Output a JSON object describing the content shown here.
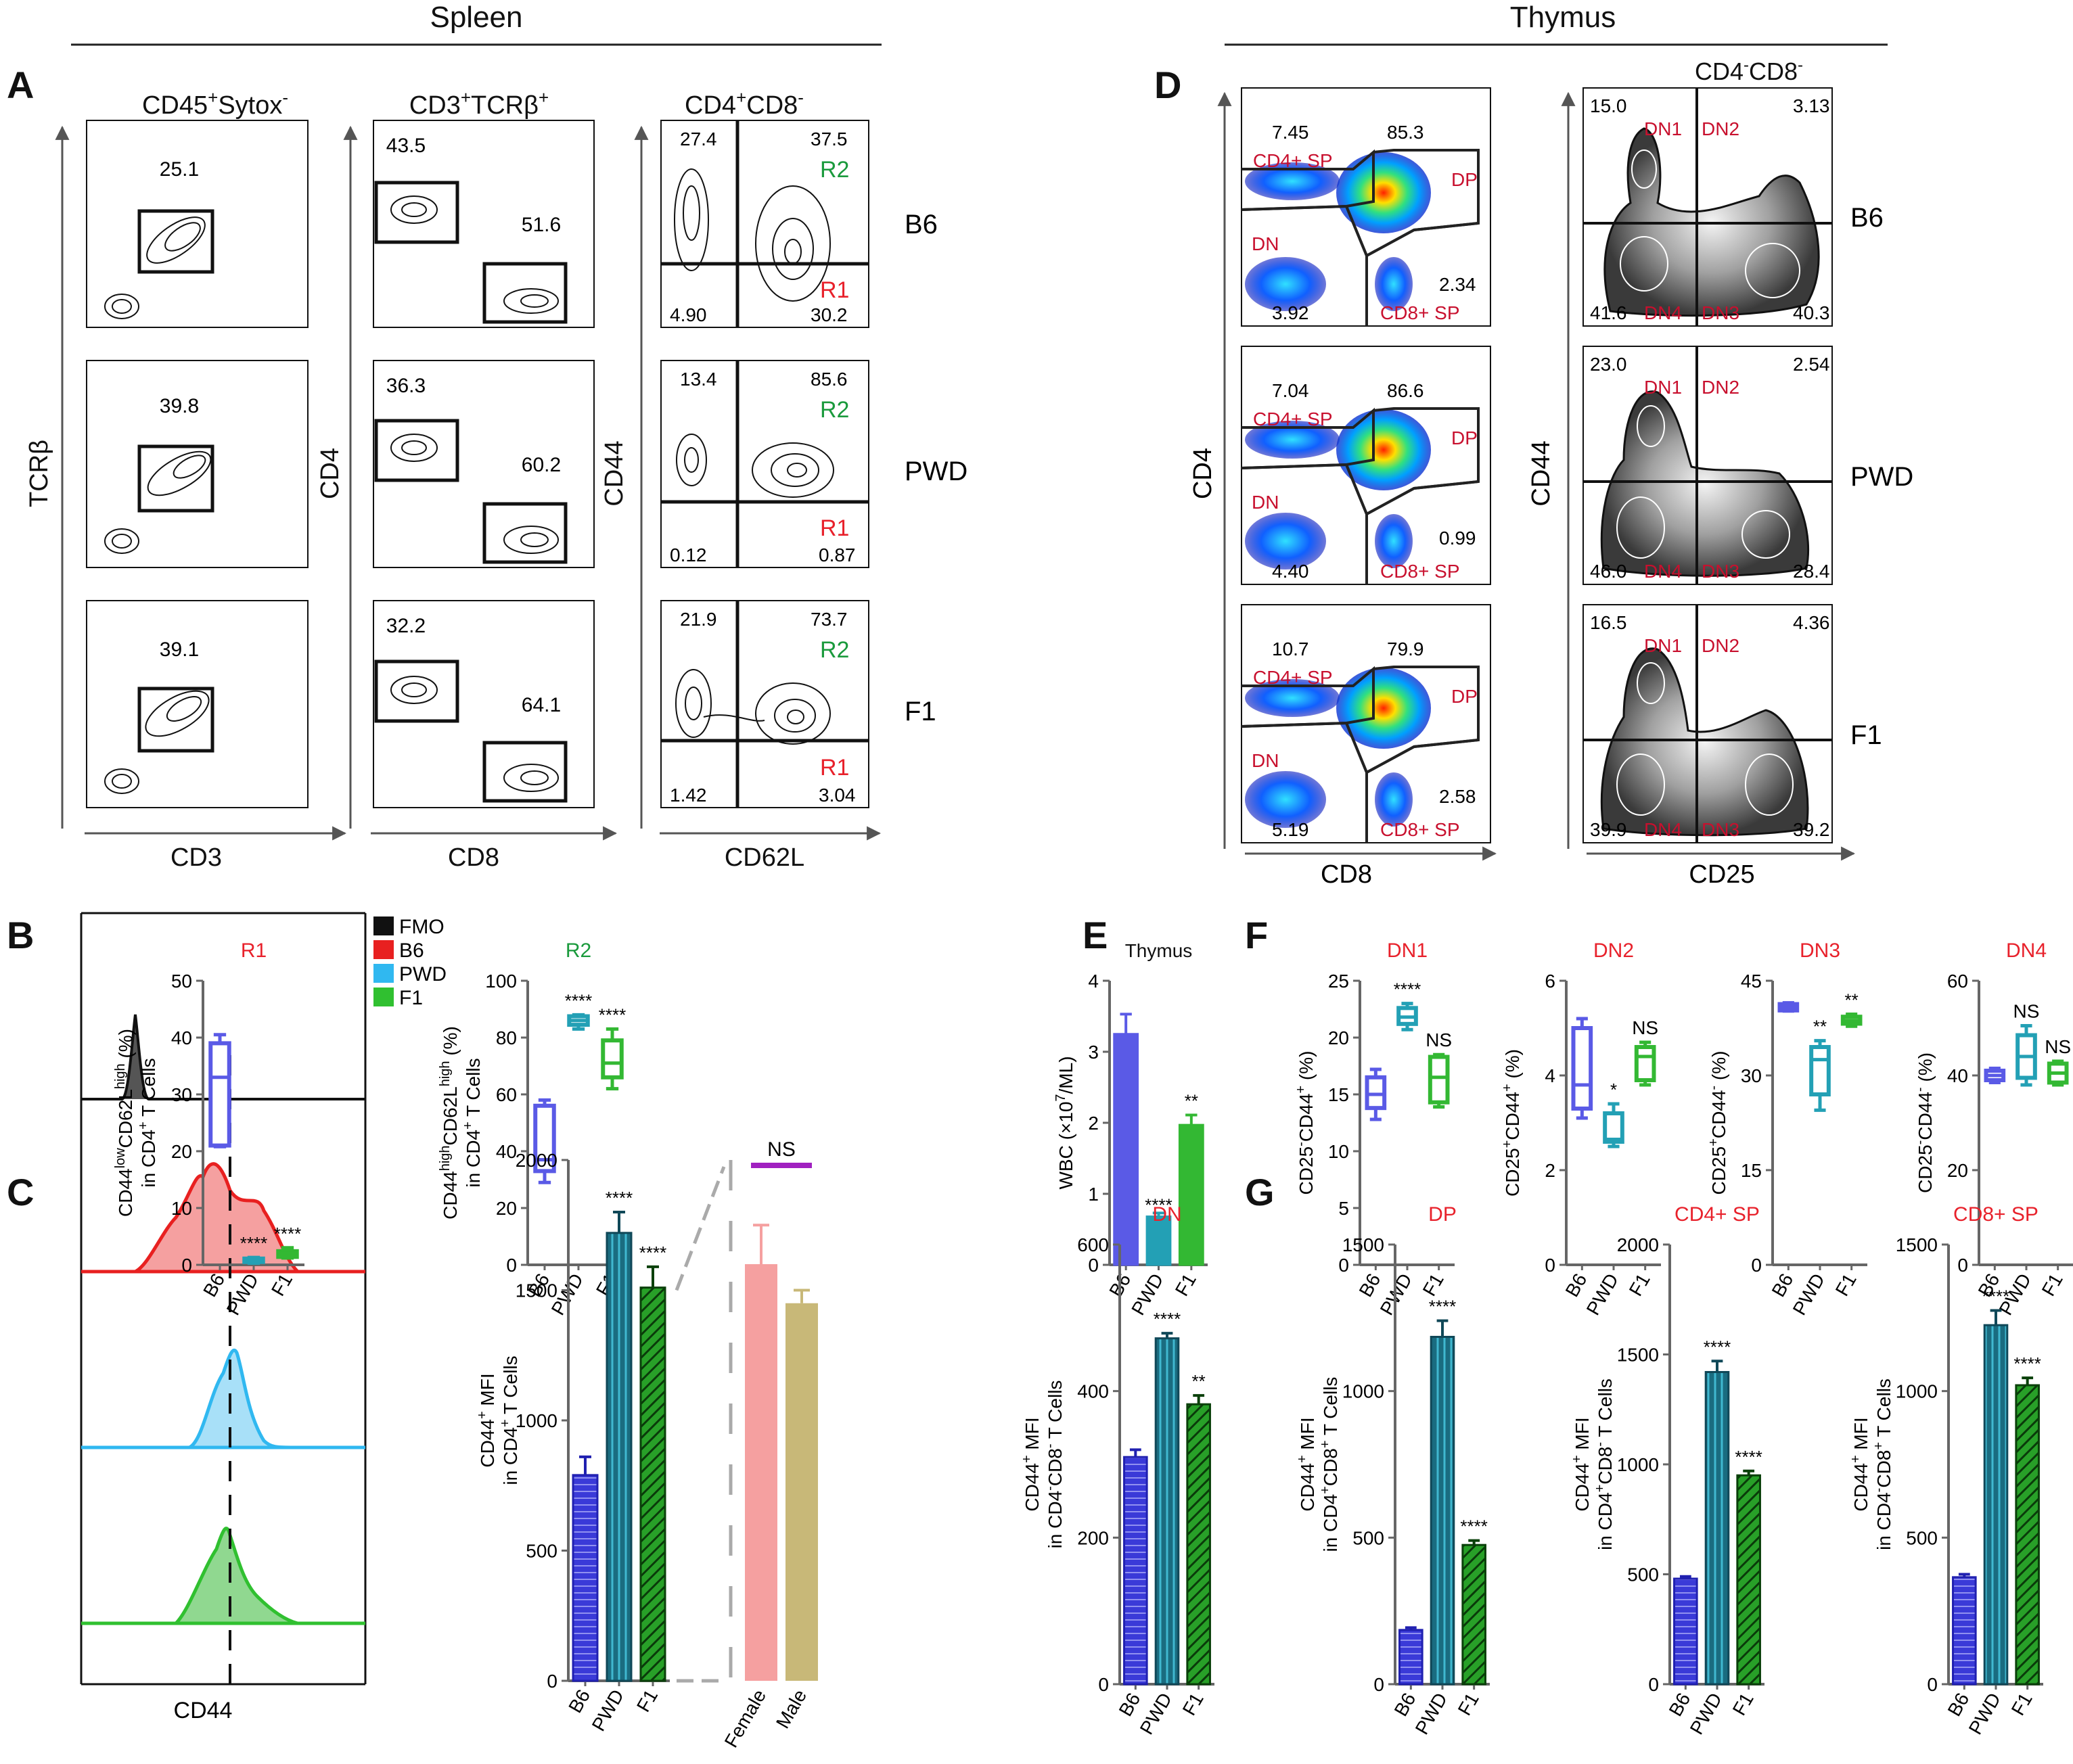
{
  "figure": {
    "section_spleen": "Spleen",
    "section_thymus": "Thymus",
    "colors": {
      "red": "#e8212b",
      "green": "#1a9a3c",
      "b6": "#5a5ae6",
      "pwd": "#23a0b5",
      "f1": "#33b833",
      "fmo": "#222222",
      "b6hist": "#f07070",
      "pwdhist": "#40c8f0",
      "f1hist": "#40c840",
      "female": "#f5a0a0",
      "male": "#c8b878",
      "ns_bar": "#a020c0"
    },
    "panelA": {
      "letter": "A",
      "col1_title": [
        "CD45",
        "+",
        "Sytox",
        "-"
      ],
      "col2_title": [
        "CD3",
        "+",
        "TCRβ",
        "+"
      ],
      "col3_title": [
        "CD4",
        "+",
        "CD8",
        "-"
      ],
      "col1_xlabel": "CD3",
      "col1_ylabel": "TCRβ",
      "col2_xlabel": "CD8",
      "col2_ylabel": "CD4",
      "col3_xlabel": "CD62L",
      "col3_ylabel": "CD44",
      "rows": [
        {
          "label": "B6",
          "tcr_gate": "25.1",
          "cd4": "43.5",
          "cd8": "51.6",
          "q_ul": "27.4",
          "q_ur": "37.5",
          "q_ll": "4.90",
          "q_lr": "30.2",
          "r1": "R1",
          "r2": "R2"
        },
        {
          "label": "PWD",
          "tcr_gate": "39.8",
          "cd4": "36.3",
          "cd8": "60.2",
          "q_ul": "13.4",
          "q_ur": "85.6",
          "q_ll": "0.12",
          "q_lr": "0.87",
          "r1": "R1",
          "r2": "R2"
        },
        {
          "label": "F1",
          "tcr_gate": "39.1",
          "cd4": "32.2",
          "cd8": "64.1",
          "q_ul": "21.9",
          "q_ur": "73.7",
          "q_ll": "1.42",
          "q_lr": "3.04",
          "r1": "R1",
          "r2": "R2"
        }
      ]
    },
    "panelD": {
      "letter": "D",
      "col2_title": [
        "CD4",
        "-",
        "CD8",
        "-"
      ],
      "col1_xlabel": "CD8",
      "col1_ylabel": "CD4",
      "col2_xlabel": "CD25",
      "col2_ylabel": "CD44",
      "gate_labels": {
        "cd4sp": "CD4+ SP",
        "dp": "DP",
        "dn": "DN",
        "cd8sp": "CD8+ SP",
        "dn1": "DN1",
        "dn2": "DN2",
        "dn3": "DN3",
        "dn4": "DN4"
      },
      "rows": [
        {
          "label": "B6",
          "cd4sp": "7.45",
          "dp": "85.3",
          "dn": "3.92",
          "cd8sp": "2.34",
          "dn1": "15.0",
          "dn2": "3.13",
          "dn4": "41.6",
          "dn3": "40.3"
        },
        {
          "label": "PWD",
          "cd4sp": "7.04",
          "dp": "86.6",
          "dn": "4.40",
          "cd8sp": "0.99",
          "dn1": "23.0",
          "dn2": "2.54",
          "dn4": "46.0",
          "dn3": "28.4"
        },
        {
          "label": "F1",
          "cd4sp": "10.7",
          "dp": "79.9",
          "dn": "5.19",
          "cd8sp": "2.58",
          "dn1": "16.5",
          "dn2": "4.36",
          "dn4": "39.9",
          "dn3": "39.2"
        }
      ]
    },
    "panelB_letter": "B",
    "panelC_letter": "C",
    "panelE_letter": "E",
    "panelF_letter": "F",
    "panelG_letter": "G",
    "histogram": {
      "xlabel": "CD44",
      "legend": [
        "FMO",
        "B6",
        "PWD",
        "F1"
      ]
    }
  },
  "chart_data": [
    {
      "id": "B-R1",
      "type": "box",
      "title": "R1",
      "ylabel_parts": [
        "CD44",
        "low",
        "CD62L",
        "high",
        " (%)"
      ],
      "ylabel2_parts": [
        "in CD4",
        "+",
        " T Cells"
      ],
      "categories": [
        "B6",
        "PWD",
        "F1"
      ],
      "ylim": [
        0,
        50
      ],
      "yticks": [
        0,
        10,
        20,
        30,
        40,
        50
      ],
      "boxes": [
        {
          "min": 20.8,
          "q1": 21,
          "median": 33,
          "q3": 39,
          "max": 40.5
        },
        {
          "min": 0.3,
          "q1": 0.5,
          "median": 0.9,
          "q3": 1.1,
          "max": 1.3
        },
        {
          "min": 1.2,
          "q1": 1.4,
          "median": 2.0,
          "q3": 2.4,
          "max": 3.0
        }
      ],
      "annotations": [
        "",
        "****",
        "****"
      ]
    },
    {
      "id": "B-R2",
      "type": "box",
      "title": "R2",
      "ylabel_parts": [
        "CD44",
        "high",
        "CD62L",
        "high",
        " (%)"
      ],
      "ylabel2_parts": [
        "in CD4",
        "+",
        " T Cells"
      ],
      "categories": [
        "B6",
        "PWD",
        "F1"
      ],
      "ylim": [
        0,
        100
      ],
      "yticks": [
        0,
        20,
        40,
        60,
        80,
        100
      ],
      "boxes": [
        {
          "min": 29,
          "q1": 33,
          "median": 37,
          "q3": 56,
          "max": 58
        },
        {
          "min": 83,
          "q1": 84.5,
          "median": 86,
          "q3": 87.5,
          "max": 88
        },
        {
          "min": 62,
          "q1": 66,
          "median": 71,
          "q3": 79,
          "max": 83
        }
      ],
      "annotations": [
        "",
        "****",
        "****"
      ]
    },
    {
      "id": "C-MFI",
      "type": "bar",
      "ylabel": "CD44+ MFI",
      "ylabel2_parts": [
        "in CD4",
        "+",
        " T Cells"
      ],
      "categories": [
        "B6",
        "PWD",
        "F1"
      ],
      "ylim": [
        0,
        2000
      ],
      "yticks": [
        0,
        500,
        1000,
        1500,
        2000
      ],
      "values": [
        790,
        1720,
        1510
      ],
      "errors": [
        70,
        80,
        80
      ],
      "annotations": [
        "",
        "****",
        "****"
      ]
    },
    {
      "id": "C-sex",
      "type": "bar",
      "categories": [
        "Female",
        "Male"
      ],
      "values": [
        1600,
        1450
      ],
      "errors": [
        150,
        50
      ],
      "annotation": "NS"
    },
    {
      "id": "E",
      "type": "bar",
      "title": "Thymus",
      "ylabel_parts": [
        "WBC (×10",
        "7",
        "/ML)"
      ],
      "categories": [
        "B6",
        "PWD",
        "F1"
      ],
      "ylim": [
        0,
        4
      ],
      "yticks": [
        0,
        1,
        2,
        3,
        4
      ],
      "values": [
        3.25,
        0.68,
        1.97
      ],
      "errors": [
        0.28,
        0.05,
        0.14
      ],
      "annotations": [
        "",
        "****",
        "**"
      ]
    },
    {
      "id": "F-DN1",
      "type": "box",
      "title": "DN1",
      "ylabel_parts": [
        "CD25",
        "-",
        "CD44",
        "+",
        " (%)"
      ],
      "categories": [
        "B6",
        "PWD",
        "F1"
      ],
      "ylim": [
        0,
        25
      ],
      "yticks": [
        0,
        5,
        10,
        15,
        20,
        25
      ],
      "boxes": [
        {
          "min": 12.8,
          "q1": 13.8,
          "median": 15.0,
          "q3": 16.5,
          "max": 17.2
        },
        {
          "min": 20.7,
          "q1": 21.2,
          "median": 21.8,
          "q3": 22.6,
          "max": 23.0
        },
        {
          "min": 13.9,
          "q1": 14.3,
          "median": 16.5,
          "q3": 18.3,
          "max": 18.5
        }
      ],
      "annotations": [
        "",
        "****",
        "NS"
      ]
    },
    {
      "id": "F-DN2",
      "type": "box",
      "title": "DN2",
      "ylabel_parts": [
        "CD25",
        "+",
        "CD44",
        "+",
        " (%)"
      ],
      "categories": [
        "B6",
        "PWD",
        "F1"
      ],
      "ylim": [
        0,
        6
      ],
      "yticks": [
        0,
        2,
        4,
        6
      ],
      "boxes": [
        {
          "min": 3.1,
          "q1": 3.3,
          "median": 3.8,
          "q3": 5.0,
          "max": 5.2
        },
        {
          "min": 2.5,
          "q1": 2.6,
          "median": 2.65,
          "q3": 3.2,
          "max": 3.4
        },
        {
          "min": 3.8,
          "q1": 3.9,
          "median": 4.4,
          "q3": 4.6,
          "max": 4.7
        }
      ],
      "annotations": [
        "",
        "*",
        "NS"
      ]
    },
    {
      "id": "F-DN3",
      "type": "box",
      "title": "DN3",
      "ylabel_parts": [
        "CD25",
        "+",
        "CD44",
        "-",
        " (%)"
      ],
      "categories": [
        "B6",
        "PWD",
        "F1"
      ],
      "ylim": [
        0,
        45
      ],
      "yticks": [
        0,
        15,
        30,
        45
      ],
      "boxes": [
        {
          "min": 40.2,
          "q1": 40.3,
          "median": 40.8,
          "q3": 41.3,
          "max": 41.5
        },
        {
          "min": 24.5,
          "q1": 27,
          "median": 32.5,
          "q3": 34.5,
          "max": 35.5
        },
        {
          "min": 37.8,
          "q1": 38.2,
          "median": 38.7,
          "q3": 39.3,
          "max": 39.7
        }
      ],
      "annotations": [
        "",
        "**",
        "**"
      ]
    },
    {
      "id": "F-DN4",
      "type": "box",
      "title": "DN4",
      "ylabel_parts": [
        "CD25",
        "-",
        "CD44",
        "-",
        " (%)"
      ],
      "categories": [
        "B6",
        "PWD",
        "F1"
      ],
      "ylim": [
        0,
        60
      ],
      "yticks": [
        0,
        20,
        40,
        60
      ],
      "boxes": [
        {
          "min": 38.5,
          "q1": 39,
          "median": 40,
          "q3": 41,
          "max": 41.5
        },
        {
          "min": 38,
          "q1": 39.5,
          "median": 44,
          "q3": 48.5,
          "max": 50.5
        },
        {
          "min": 38,
          "q1": 38.5,
          "median": 40.5,
          "q3": 42.5,
          "max": 43
        }
      ],
      "annotations": [
        "",
        "NS",
        "NS"
      ]
    },
    {
      "id": "G-DN",
      "type": "bar",
      "title": "DN",
      "ylabel": "CD44+ MFI",
      "ylabel2_parts": [
        "in CD4",
        "-",
        "CD8",
        "-",
        " T Cells"
      ],
      "categories": [
        "B6",
        "PWD",
        "F1"
      ],
      "ylim": [
        0,
        600
      ],
      "yticks": [
        0,
        200,
        400,
        600
      ],
      "values": [
        310,
        472,
        382
      ],
      "errors": [
        10,
        7,
        12
      ],
      "annotations": [
        "",
        "****",
        "**"
      ]
    },
    {
      "id": "G-DP",
      "type": "bar",
      "title": "DP",
      "ylabel": "CD44+ MFI",
      "ylabel2_parts": [
        "in CD4",
        "+",
        "CD8",
        "+",
        " T Cells"
      ],
      "categories": [
        "B6",
        "PWD",
        "F1"
      ],
      "ylim": [
        0,
        1500
      ],
      "yticks": [
        0,
        500,
        1000,
        1500
      ],
      "values": [
        185,
        1185,
        475
      ],
      "errors": [
        8,
        55,
        15
      ],
      "annotations": [
        "",
        "****",
        "****"
      ]
    },
    {
      "id": "G-CD4SP",
      "type": "bar",
      "title": "CD4+ SP",
      "ylabel": "CD44+ MFI",
      "ylabel2_parts": [
        "in CD4",
        "+",
        "CD8",
        "-",
        " T Cells"
      ],
      "categories": [
        "B6",
        "PWD",
        "F1"
      ],
      "ylim": [
        0,
        2000
      ],
      "yticks": [
        0,
        500,
        1000,
        1500,
        2000
      ],
      "values": [
        480,
        1420,
        950
      ],
      "errors": [
        10,
        50,
        20
      ],
      "annotations": [
        "",
        "****",
        "****"
      ]
    },
    {
      "id": "G-CD8SP",
      "type": "bar",
      "title": "CD8+ SP",
      "ylabel": "CD44+ MFI",
      "ylabel2_parts": [
        "in CD4",
        "-",
        "CD8",
        "+",
        " T Cells"
      ],
      "categories": [
        "B6",
        "PWD",
        "F1"
      ],
      "ylim": [
        0,
        1500
      ],
      "yticks": [
        0,
        500,
        1000,
        1500
      ],
      "values": [
        365,
        1225,
        1020
      ],
      "errors": [
        10,
        50,
        25
      ],
      "annotations": [
        "",
        "****",
        "****"
      ]
    }
  ]
}
